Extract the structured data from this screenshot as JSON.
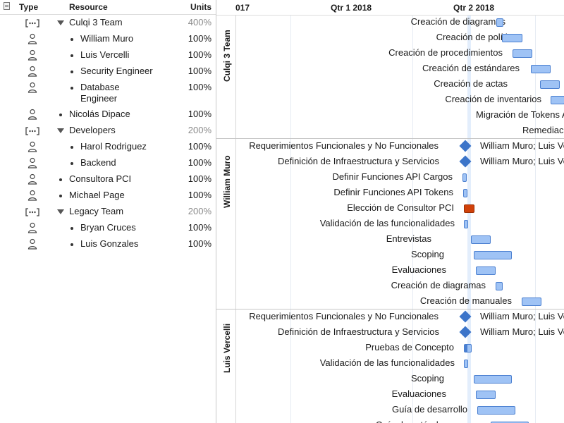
{
  "outline": {
    "headers": {
      "type": "Type",
      "resource": "Resource",
      "units": "Units"
    },
    "rows": [
      {
        "kind": "group",
        "name": "Culqi 3 Team",
        "units": "400%",
        "level": 0
      },
      {
        "kind": "person",
        "name": "William Muro",
        "units": "100%",
        "level": 1
      },
      {
        "kind": "person",
        "name": "Luis Vercelli",
        "units": "100%",
        "level": 1
      },
      {
        "kind": "person",
        "name": "Security Engineer",
        "units": "100%",
        "level": 1
      },
      {
        "kind": "person",
        "name": "Database",
        "name2": "Engineer",
        "units": "100%",
        "level": 1
      },
      {
        "kind": "person",
        "name": "Nicolás Dipace",
        "units": "100%",
        "level": 0
      },
      {
        "kind": "group",
        "name": "Developers",
        "units": "200%",
        "level": 0
      },
      {
        "kind": "person",
        "name": "Harol Rodriguez",
        "units": "100%",
        "level": 1
      },
      {
        "kind": "person",
        "name": "Backend",
        "units": "100%",
        "level": 1
      },
      {
        "kind": "person",
        "name": "Consultora PCI",
        "units": "100%",
        "level": 0
      },
      {
        "kind": "person",
        "name": "Michael Page",
        "units": "100%",
        "level": 0
      },
      {
        "kind": "group",
        "name": "Legacy Team",
        "units": "200%",
        "level": 0
      },
      {
        "kind": "person",
        "name": "Bryan Cruces",
        "units": "100%",
        "level": 1
      },
      {
        "kind": "person",
        "name": "Luis Gonzales",
        "units": "100%",
        "level": 1
      }
    ]
  },
  "timeline": {
    "labels": [
      "017",
      "Qtr 1 2018",
      "Qtr 2 2018"
    ]
  },
  "sections": [
    {
      "title": "Culqi 3 Team",
      "tasks": [
        {
          "label": "Creación de diagramas"
        },
        {
          "label": "Creación de políticas"
        },
        {
          "label": "Creación de procedimientos"
        },
        {
          "label": "Creación de estándares"
        },
        {
          "label": "Creación de actas"
        },
        {
          "label": "Creación de inventarios"
        },
        {
          "label": "Migración de Tokens A"
        },
        {
          "label": "Remediac"
        }
      ]
    },
    {
      "title": "William Muro",
      "tasks": [
        {
          "label": "Requerimientos Funcionales y No Funcionales",
          "assign": "William Muro; Luis Ve"
        },
        {
          "label": "Definición de Infraestructura y Servicios",
          "assign": "William Muro; Luis Ve"
        },
        {
          "label": "Definir Funciones API Cargos"
        },
        {
          "label": "Definir Funciones API Tokens"
        },
        {
          "label": "Elección de Consultor PCI"
        },
        {
          "label": "Validación de las funcionalidades"
        },
        {
          "label": "Entrevistas"
        },
        {
          "label": "Scoping"
        },
        {
          "label": "Evaluaciones"
        },
        {
          "label": "Creación de diagramas"
        },
        {
          "label": "Creación de manuales"
        }
      ]
    },
    {
      "title": "Luis Vercelli",
      "tasks": [
        {
          "label": "Requerimientos Funcionales y No Funcionales",
          "assign": "William Muro; Luis Ve"
        },
        {
          "label": "Definición de Infraestructura y Servicios",
          "assign": "William Muro; Luis Ve"
        },
        {
          "label": "Pruebas de Concepto"
        },
        {
          "label": "Validación de las funcionalidades"
        },
        {
          "label": "Scoping"
        },
        {
          "label": "Evaluaciones"
        },
        {
          "label": "Guía de desarrollo"
        },
        {
          "label": "Guía de estándares"
        }
      ]
    }
  ]
}
